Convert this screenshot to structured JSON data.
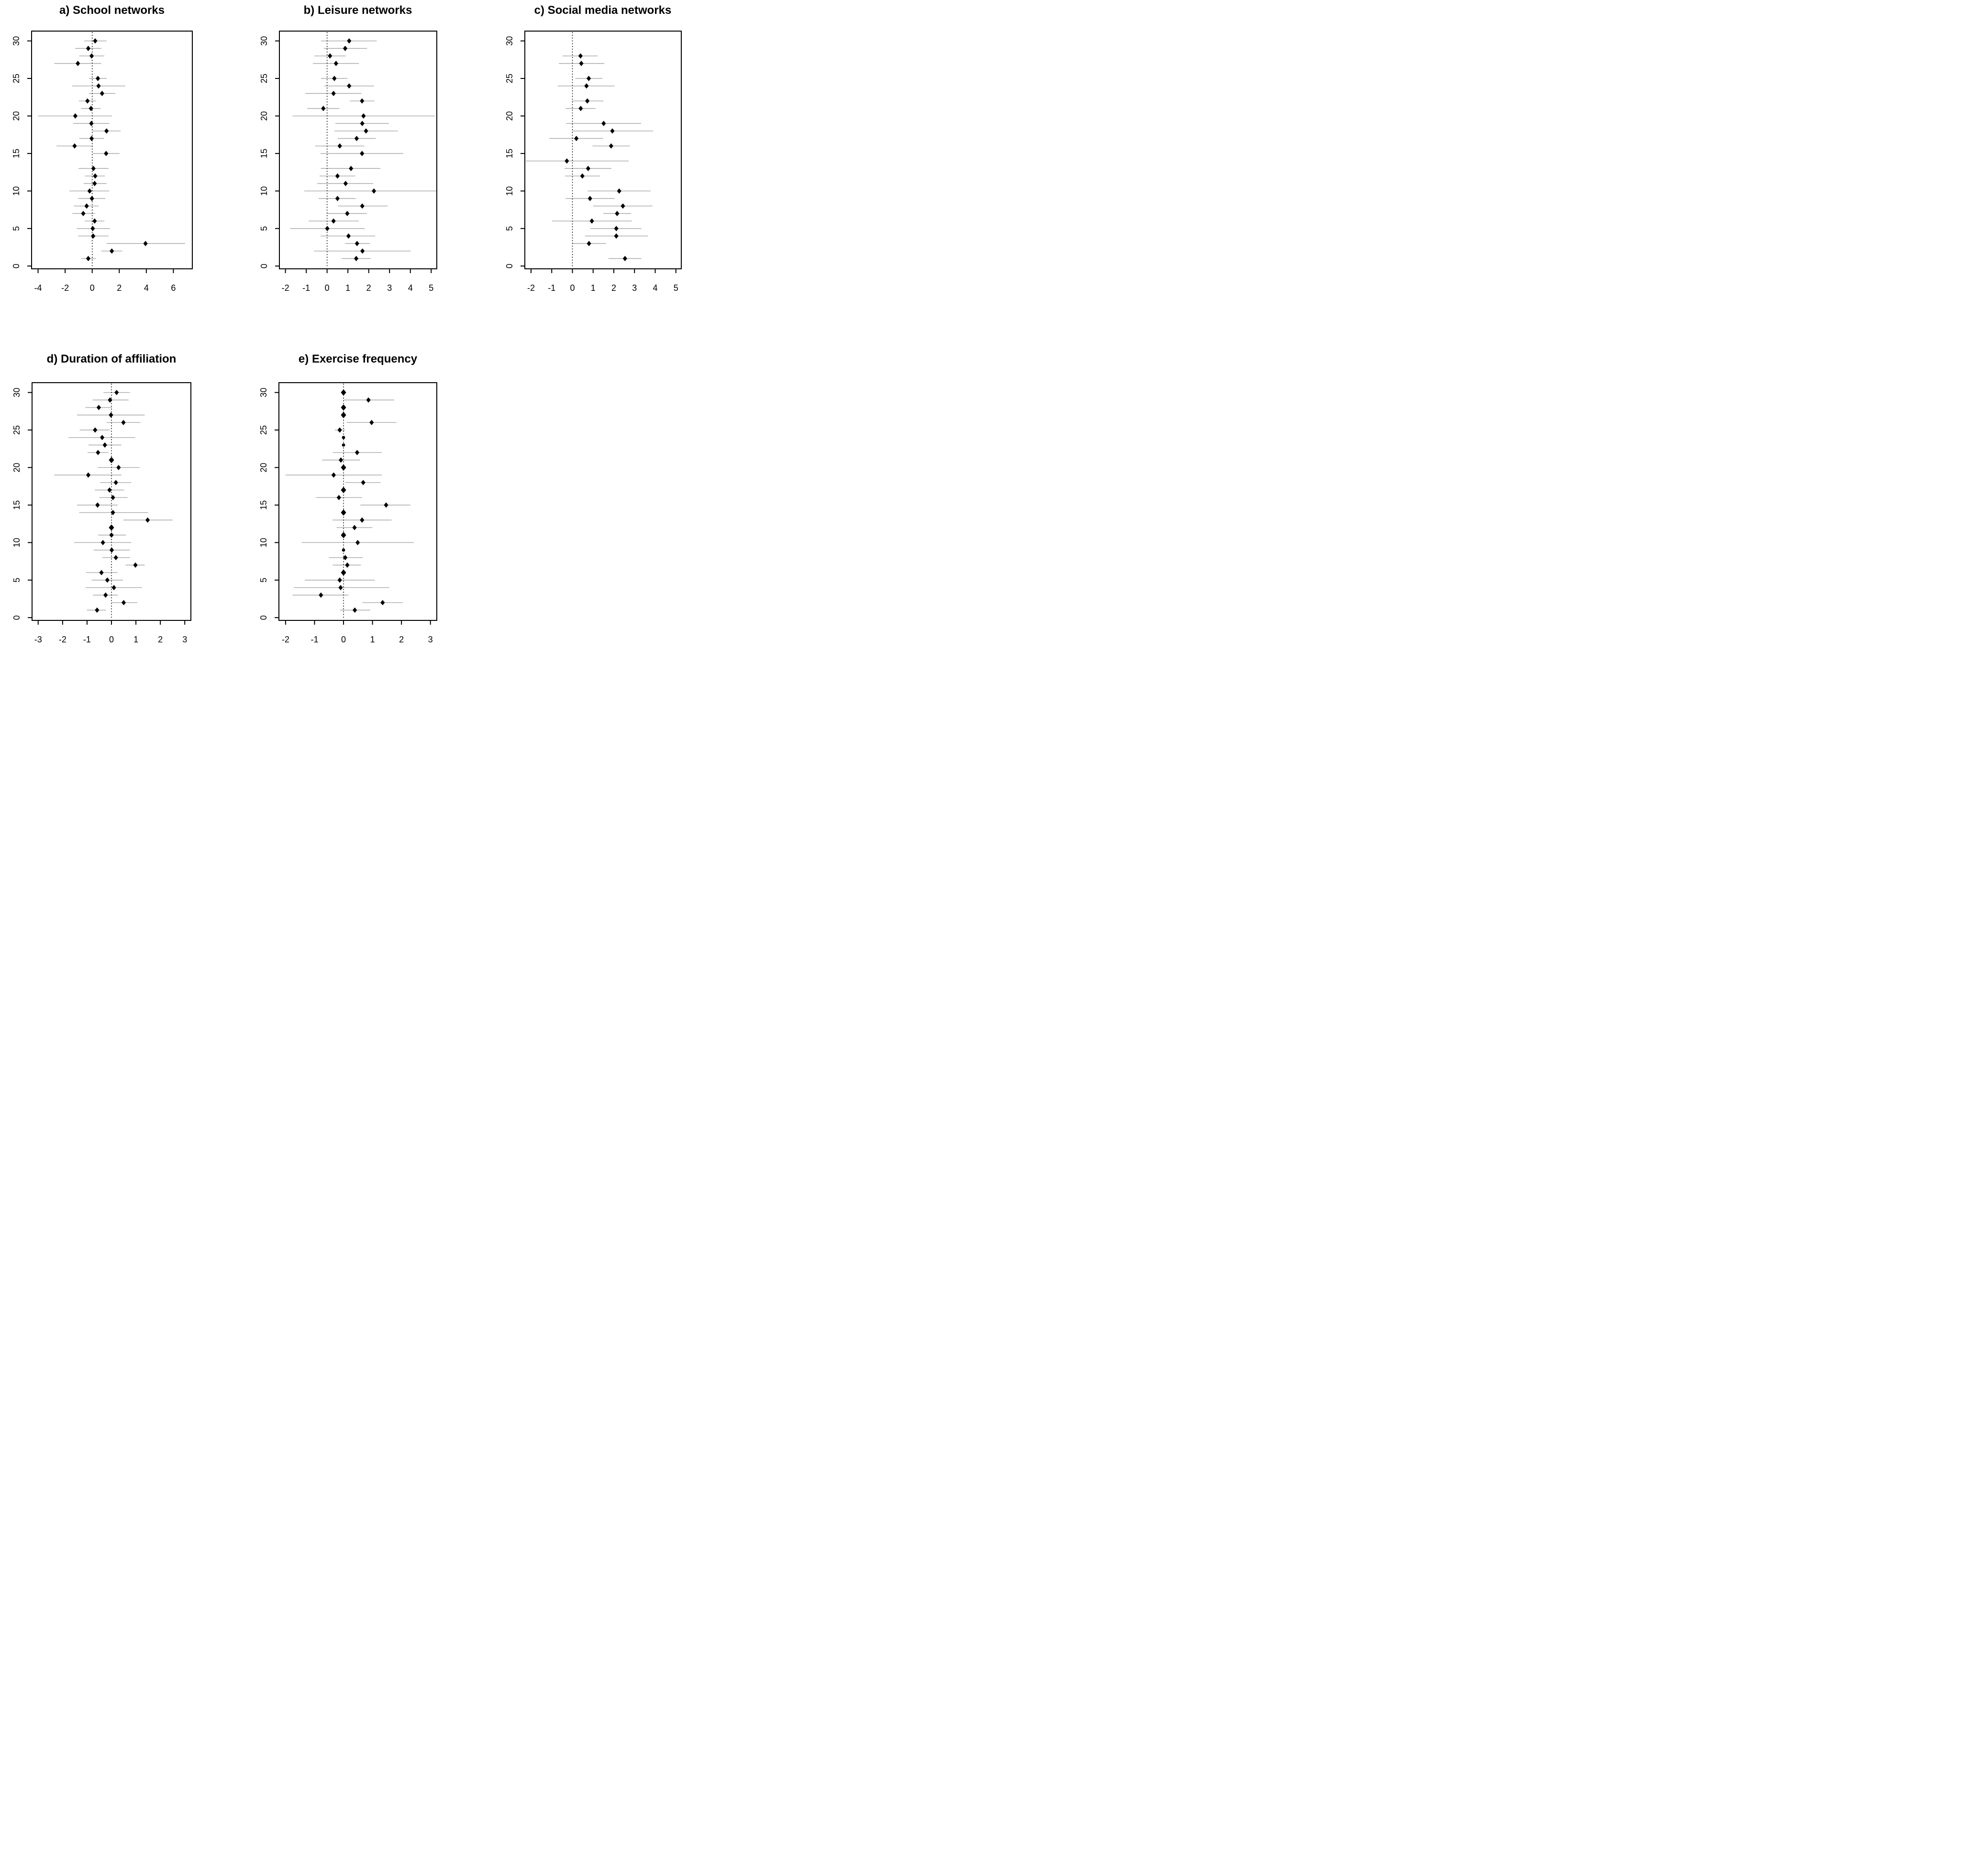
{
  "figure": {
    "background": "#ffffff",
    "marker_color": "#000000",
    "ci_line_color": "#a9a9a9",
    "axis_color": "#000000",
    "zero_line_style": "dotted"
  },
  "chart_data": [
    {
      "type": "scatter",
      "variant": "forest-plot",
      "panel_label": "a",
      "title": "a) School networks",
      "xlabel": "",
      "ylabel": "",
      "xticks": [
        -4,
        -2,
        0,
        2,
        4,
        6
      ],
      "yticks": [
        0,
        5,
        10,
        15,
        20,
        25,
        30
      ],
      "xlim": [
        -4.48,
        7.4
      ],
      "ylim": [
        -0.37,
        31.31
      ],
      "zero_line_x": 0,
      "grid": false,
      "legend": "none",
      "point_format": [
        "study_index",
        "estimate",
        "ci_low",
        "ci_high"
      ],
      "points": [
        [
          1,
          -0.29,
          -0.82,
          0.25
        ],
        [
          2,
          1.45,
          0.66,
          2.22
        ],
        [
          3,
          3.94,
          1.06,
          6.87
        ],
        [
          4,
          0.07,
          -1.06,
          1.21
        ],
        [
          5,
          0.04,
          -1.14,
          1.32
        ],
        [
          6,
          0.18,
          -0.55,
          0.9
        ],
        [
          7,
          -0.66,
          -1.47,
          0.2
        ],
        [
          8,
          -0.41,
          -1.36,
          0.48
        ],
        [
          9,
          -0.02,
          -1.03,
          0.97
        ],
        [
          10,
          -0.19,
          -1.69,
          1.26
        ],
        [
          11,
          0.18,
          -0.63,
          1.07
        ],
        [
          12,
          0.22,
          -0.53,
          0.94
        ],
        [
          13,
          0.09,
          -1.01,
          1.21
        ],
        [
          15,
          1.03,
          0.03,
          2.02
        ],
        [
          16,
          -1.3,
          -2.64,
          0.04
        ],
        [
          17,
          -0.04,
          -0.95,
          0.88
        ],
        [
          18,
          1.06,
          0.02,
          2.1
        ],
        [
          19,
          -0.06,
          -1.41,
          1.26
        ],
        [
          20,
          -1.25,
          -4.0,
          1.47
        ],
        [
          21,
          -0.09,
          -0.82,
          0.62
        ],
        [
          22,
          -0.35,
          -0.99,
          0.28
        ],
        [
          23,
          0.73,
          -0.24,
          1.72
        ],
        [
          24,
          0.47,
          -1.48,
          2.45
        ],
        [
          25,
          0.42,
          -0.24,
          1.06
        ],
        [
          27,
          -1.06,
          -2.8,
          0.66
        ],
        [
          28,
          -0.04,
          -0.97,
          0.9
        ],
        [
          29,
          -0.29,
          -1.26,
          0.68
        ],
        [
          30,
          0.22,
          -0.6,
          1.06
        ]
      ]
    },
    {
      "type": "scatter",
      "variant": "forest-plot",
      "panel_label": "b",
      "title": "b) Leisure networks",
      "xlabel": "",
      "ylabel": "",
      "xticks": [
        -2,
        -1,
        0,
        1,
        2,
        3,
        4,
        5
      ],
      "yticks": [
        0,
        5,
        10,
        15,
        20,
        25,
        30
      ],
      "xlim": [
        -2.29,
        5.27
      ],
      "ylim": [
        -0.37,
        31.31
      ],
      "zero_line_x": 0,
      "grid": false,
      "legend": "none",
      "point_format": [
        "study_index",
        "estimate",
        "ci_low",
        "ci_high"
      ],
      "points": [
        [
          1,
          1.4,
          0.7,
          2.1
        ],
        [
          2,
          1.7,
          -0.63,
          4.02
        ],
        [
          3,
          1.44,
          0.87,
          2.06
        ],
        [
          4,
          1.03,
          -0.31,
          2.31
        ],
        [
          5,
          0.01,
          -1.78,
          1.81
        ],
        [
          6,
          0.31,
          -0.88,
          1.52
        ],
        [
          7,
          0.97,
          0.01,
          1.91
        ],
        [
          8,
          1.69,
          0.52,
          2.91
        ],
        [
          9,
          0.5,
          -0.41,
          1.38
        ],
        [
          10,
          2.25,
          -1.1,
          5.25
        ],
        [
          11,
          0.89,
          -0.47,
          2.21
        ],
        [
          12,
          0.5,
          -0.36,
          1.35
        ],
        [
          13,
          1.15,
          -0.3,
          2.56
        ],
        [
          15,
          1.68,
          -0.31,
          3.66
        ],
        [
          16,
          0.61,
          -0.57,
          1.79
        ],
        [
          17,
          1.42,
          0.51,
          2.34
        ],
        [
          18,
          1.87,
          0.35,
          3.4
        ],
        [
          19,
          1.69,
          0.4,
          2.97
        ],
        [
          20,
          1.75,
          -1.66,
          5.18
        ],
        [
          21,
          -0.18,
          -0.95,
          0.59
        ],
        [
          22,
          1.68,
          1.09,
          2.28
        ],
        [
          23,
          0.31,
          -1.04,
          1.65
        ],
        [
          24,
          1.06,
          -0.13,
          2.26
        ],
        [
          25,
          0.35,
          -0.29,
          0.98
        ],
        [
          27,
          0.43,
          -0.68,
          1.53
        ],
        [
          28,
          0.14,
          -0.61,
          0.9
        ],
        [
          29,
          0.87,
          -0.15,
          1.92
        ],
        [
          30,
          1.06,
          -0.29,
          2.38
        ]
      ]
    },
    {
      "type": "scatter",
      "variant": "forest-plot",
      "panel_label": "c",
      "title": "c) Social media networks",
      "xlabel": "",
      "ylabel": "",
      "xticks": [
        -2,
        -1,
        0,
        1,
        2,
        3,
        4,
        5
      ],
      "yticks": [
        0,
        5,
        10,
        15,
        20,
        25,
        30
      ],
      "xlim": [
        -2.3,
        5.26
      ],
      "ylim": [
        -0.37,
        31.31
      ],
      "zero_line_x": 0,
      "grid": false,
      "legend": "none",
      "point_format": [
        "study_index",
        "estimate",
        "ci_low",
        "ci_high"
      ],
      "points": [
        [
          1,
          2.54,
          1.74,
          3.33
        ],
        [
          3,
          0.8,
          0.0,
          1.62
        ],
        [
          4,
          2.12,
          0.61,
          3.65
        ],
        [
          5,
          2.12,
          0.87,
          3.33
        ],
        [
          6,
          0.94,
          -0.99,
          2.87
        ],
        [
          7,
          2.16,
          1.5,
          2.83
        ],
        [
          8,
          2.44,
          1.0,
          3.87
        ],
        [
          9,
          0.85,
          -0.33,
          2.04
        ],
        [
          10,
          2.26,
          0.73,
          3.78
        ],
        [
          12,
          0.48,
          -0.36,
          1.34
        ],
        [
          13,
          0.76,
          -0.38,
          1.88
        ],
        [
          14,
          -0.27,
          -2.25,
          2.72
        ],
        [
          16,
          1.87,
          0.97,
          2.78
        ],
        [
          17,
          0.19,
          -1.11,
          1.48
        ],
        [
          18,
          1.93,
          0.01,
          3.9
        ],
        [
          19,
          1.51,
          -0.3,
          3.32
        ],
        [
          21,
          0.4,
          -0.33,
          1.12
        ],
        [
          22,
          0.72,
          0.0,
          1.5
        ],
        [
          24,
          0.68,
          -0.71,
          2.04
        ],
        [
          25,
          0.79,
          0.14,
          1.45
        ],
        [
          27,
          0.43,
          -0.66,
          1.54
        ],
        [
          28,
          0.39,
          -0.48,
          1.22
        ]
      ]
    },
    {
      "type": "scatter",
      "variant": "forest-plot",
      "panel_label": "d",
      "title": "d) Duration of affiliation",
      "xlabel": "",
      "ylabel": "",
      "xticks": [
        -3,
        -2,
        -1,
        0,
        1,
        2,
        3
      ],
      "yticks": [
        0,
        5,
        10,
        15,
        20,
        25,
        30
      ],
      "xlim": [
        -3.25,
        3.25
      ],
      "ylim": [
        -0.37,
        31.31
      ],
      "zero_line_x": 0,
      "grid": false,
      "legend": "none",
      "point_format": [
        "study_index",
        "estimate",
        "ci_low",
        "ci_high"
      ],
      "points": [
        [
          1,
          -0.59,
          -1.01,
          -0.23
        ],
        [
          2,
          0.5,
          0.01,
          1.06
        ],
        [
          3,
          -0.24,
          -0.76,
          0.26
        ],
        [
          4,
          0.1,
          -1.06,
          1.25
        ],
        [
          5,
          -0.17,
          -0.81,
          0.47
        ],
        [
          6,
          -0.41,
          -1.04,
          0.25
        ],
        [
          7,
          0.98,
          0.58,
          1.36
        ],
        [
          8,
          0.18,
          -0.37,
          0.76
        ],
        [
          9,
          0.01,
          -0.73,
          0.75
        ],
        [
          10,
          -0.35,
          -1.53,
          0.81
        ],
        [
          11,
          0.0,
          -0.54,
          0.59
        ],
        [
          12,
          0.0,
          -0.03,
          0.03
        ],
        [
          13,
          1.48,
          0.49,
          2.5
        ],
        [
          14,
          0.06,
          -1.32,
          1.5
        ],
        [
          15,
          -0.57,
          -1.41,
          0.26
        ],
        [
          16,
          0.06,
          -0.5,
          0.66
        ],
        [
          17,
          -0.08,
          -0.68,
          0.52
        ],
        [
          18,
          0.18,
          -0.46,
          0.81
        ],
        [
          19,
          -0.95,
          -2.34,
          0.41
        ],
        [
          20,
          0.29,
          -0.56,
          1.15
        ],
        [
          21,
          0.0,
          -0.03,
          0.03
        ],
        [
          22,
          -0.55,
          -0.98,
          -0.12
        ],
        [
          23,
          -0.27,
          -0.94,
          0.4
        ],
        [
          24,
          -0.38,
          -1.76,
          0.97
        ],
        [
          25,
          -0.67,
          -1.3,
          -0.07
        ],
        [
          26,
          0.49,
          -0.2,
          1.19
        ],
        [
          27,
          -0.02,
          -1.41,
          1.36
        ],
        [
          28,
          -0.52,
          -1.07,
          0.01
        ],
        [
          29,
          -0.06,
          -0.77,
          0.7
        ],
        [
          30,
          0.21,
          -0.33,
          0.76
        ]
      ]
    },
    {
      "type": "scatter",
      "variant": "forest-plot",
      "panel_label": "e",
      "title": "e) Exercise frequency",
      "xlabel": "",
      "ylabel": "",
      "xticks": [
        -2,
        -1,
        0,
        1,
        2,
        3
      ],
      "yticks": [
        0,
        5,
        10,
        15,
        20,
        25,
        30
      ],
      "xlim": [
        -2.23,
        3.22
      ],
      "ylim": [
        -0.37,
        31.31
      ],
      "zero_line_x": 0,
      "grid": false,
      "legend": "none",
      "point_format": [
        "study_index",
        "estimate",
        "ci_low",
        "ci_high"
      ],
      "points": [
        [
          1,
          0.39,
          -0.12,
          0.92
        ],
        [
          2,
          1.35,
          0.65,
          2.05
        ],
        [
          3,
          -0.78,
          -1.76,
          0.17
        ],
        [
          4,
          -0.1,
          -1.72,
          1.58
        ],
        [
          5,
          -0.13,
          -1.34,
          1.08
        ],
        [
          6,
          0.0,
          -0.02,
          0.02
        ],
        [
          7,
          0.13,
          -0.37,
          0.6
        ],
        [
          8,
          0.06,
          -0.5,
          0.66
        ],
        [
          9,
          0.0,
          -0.04,
          0.04
        ],
        [
          10,
          0.49,
          -1.45,
          2.43
        ],
        [
          11,
          0.0,
          -0.02,
          0.02
        ],
        [
          12,
          0.38,
          -0.24,
          1.0
        ],
        [
          13,
          0.64,
          -0.38,
          1.66
        ],
        [
          14,
          0.0,
          -0.02,
          0.02
        ],
        [
          15,
          1.47,
          0.58,
          2.31
        ],
        [
          16,
          -0.16,
          -0.95,
          0.64
        ],
        [
          17,
          0.0,
          -0.02,
          0.02
        ],
        [
          18,
          0.68,
          0.06,
          1.28
        ],
        [
          19,
          -0.34,
          -2.0,
          1.32
        ],
        [
          20,
          0.0,
          -0.02,
          0.02
        ],
        [
          21,
          -0.09,
          -0.74,
          0.57
        ],
        [
          22,
          0.47,
          -0.37,
          1.32
        ],
        [
          23,
          0.0,
          -0.04,
          0.04
        ],
        [
          24,
          0.0,
          -0.04,
          0.04
        ],
        [
          25,
          -0.13,
          -0.3,
          0.05
        ],
        [
          26,
          0.97,
          0.11,
          1.83
        ],
        [
          27,
          0.0,
          -0.02,
          0.02
        ],
        [
          28,
          0.0,
          -0.02,
          0.02
        ],
        [
          29,
          0.86,
          0.02,
          1.75
        ],
        [
          30,
          0.0,
          -0.02,
          0.02
        ]
      ]
    }
  ]
}
